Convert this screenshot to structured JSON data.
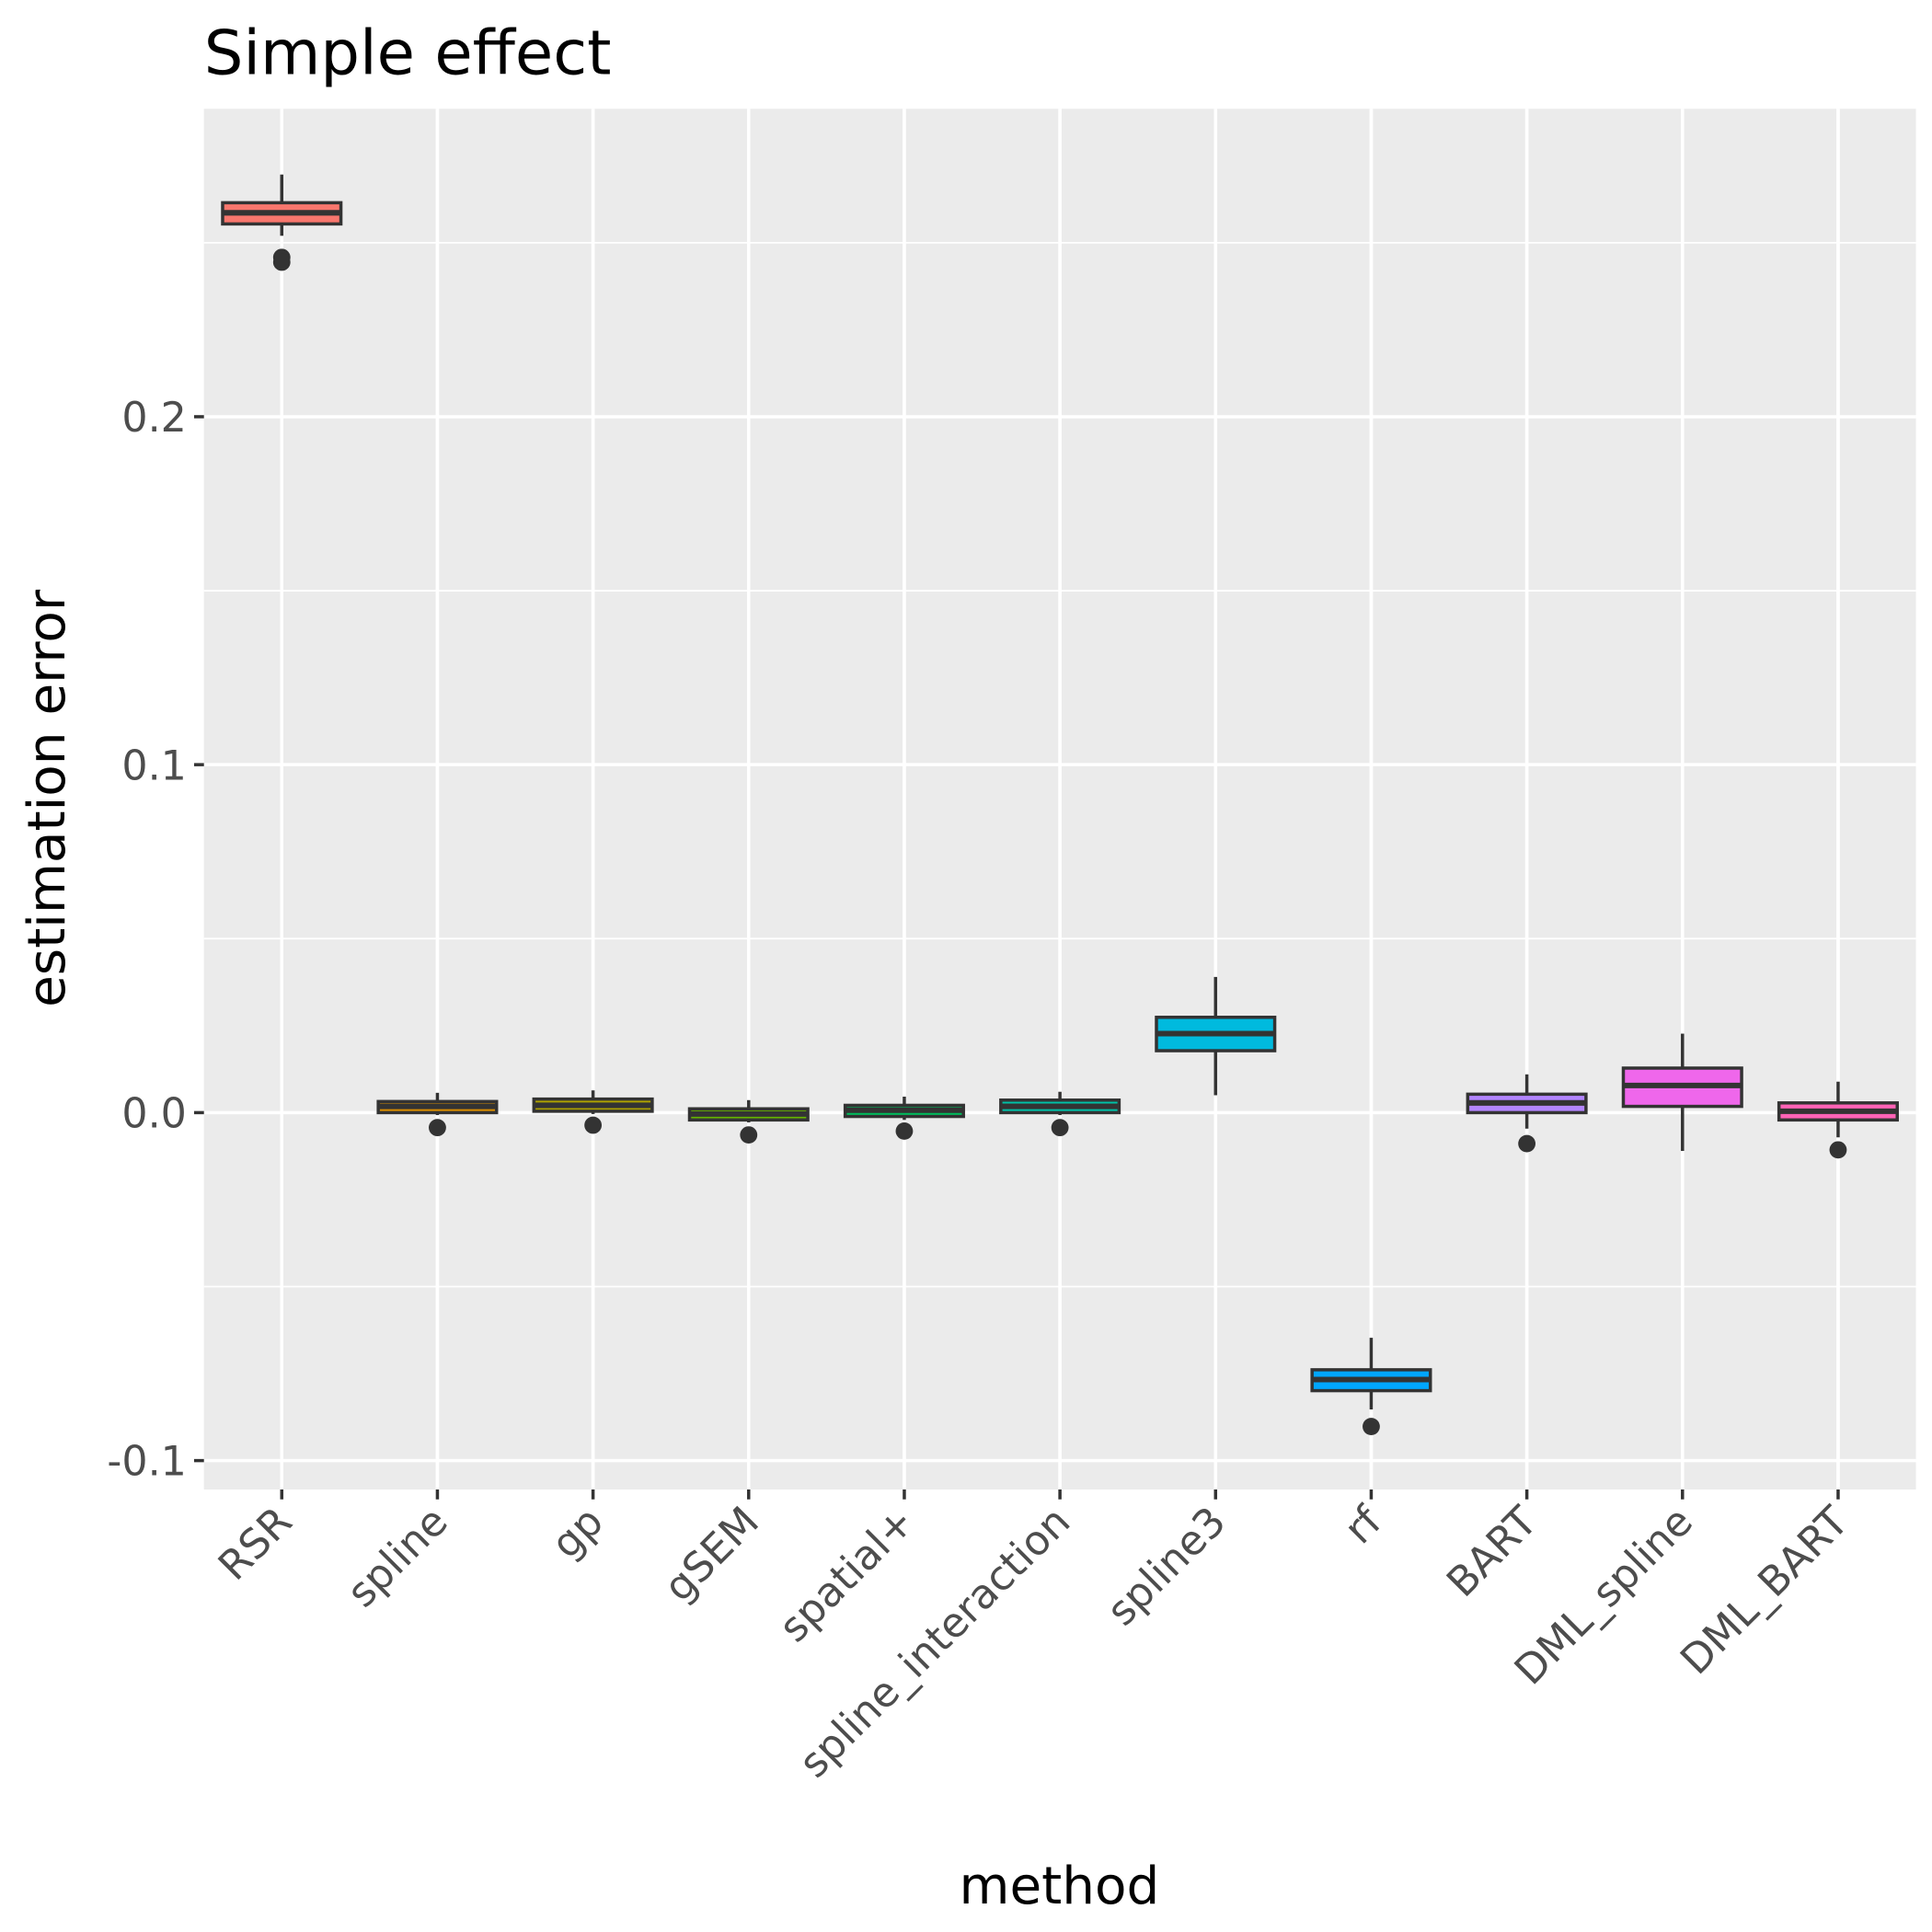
{
  "chart_data": {
    "type": "box",
    "title": "Simple effect",
    "x_label": "method",
    "y_label": "estimation error",
    "categories": [
      "RSR",
      "spline",
      "gp",
      "gSEM",
      "spatial+",
      "spline_interaction",
      "spline3",
      "rf",
      "BART",
      "DML_spline",
      "DML_BART"
    ],
    "colors": [
      "#F8766D",
      "#DB8E00",
      "#AEA200",
      "#64B200",
      "#00BD5C",
      "#00C1A7",
      "#00BADE",
      "#00A6FF",
      "#B385FF",
      "#EF67EB",
      "#FF63B6"
    ],
    "whisker_low": [
      0.252,
      -0.0007,
      -0.0004,
      -0.0028,
      -0.0021,
      -0.0007,
      0.005,
      -0.0853,
      -0.0046,
      -0.011,
      -0.0071
    ],
    "q1": [
      0.2554,
      0.0,
      0.0004,
      -0.0021,
      -0.0011,
      0.0,
      0.0178,
      -0.0799,
      0.0,
      0.0018,
      -0.0021
    ],
    "median": [
      0.2586,
      0.0018,
      0.0021,
      -0.0004,
      0.0007,
      0.0018,
      0.0227,
      -0.0767,
      0.0028,
      0.0078,
      0.0004
    ],
    "q3": [
      0.2615,
      0.0032,
      0.0039,
      0.0011,
      0.0021,
      0.0036,
      0.0274,
      -0.0739,
      0.0053,
      0.0128,
      0.0028
    ],
    "whisker_high": [
      0.2696,
      0.0057,
      0.0064,
      0.0036,
      0.0046,
      0.006,
      0.039,
      -0.0647,
      0.011,
      0.0227,
      0.0089
    ],
    "outliers": [
      [
        0.2458,
        0.2444
      ],
      [
        -0.0043
      ],
      [
        -0.0036
      ],
      [
        -0.0064
      ],
      [
        -0.0053
      ],
      [
        -0.0043
      ],
      [],
      [
        -0.0902
      ],
      [
        -0.0089
      ],
      [],
      [
        -0.0107
      ]
    ],
    "ylim": [
      -0.1083,
      0.2885
    ],
    "yticks": [
      -0.1,
      {
        "value": 0,
        "label": "0.0"
      },
      0.1,
      0.2
    ],
    "grid": true
  }
}
